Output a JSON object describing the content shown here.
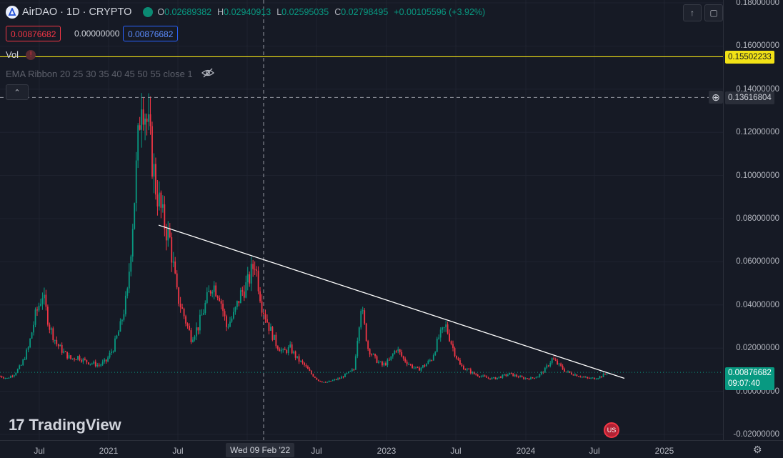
{
  "symbol": {
    "title": "AirDAO · 1D · CRYPTO",
    "logo_icon": "airdao-logo-icon",
    "status_icon": "market-open-dot-icon",
    "ohlc": {
      "o_label": "O",
      "o": "0.02689382",
      "h_label": "H",
      "h": "0.02940913",
      "l_label": "L",
      "l": "0.02595035",
      "c_label": "C",
      "c": "0.02798495",
      "change": "+0.00105596 (+3.92%)"
    }
  },
  "order": {
    "sell": "0.00876682",
    "spread": "0.00000000",
    "buy": "0.00876682"
  },
  "indicators": {
    "vol_label": "Vol",
    "vol_warning": "!",
    "ema_label": "EMA Ribbon 20 25 30 35 40 45 50 55 close 1"
  },
  "price_axis": {
    "ticks": [
      "0.18000000",
      "0.16000000",
      "0.14000000",
      "0.12000000",
      "0.10000000",
      "0.08000000",
      "0.06000000",
      "0.04000000",
      "0.02000000",
      "0.00000000",
      "-0.02000000"
    ],
    "yellow_line_label": "0.15502233",
    "crosshair_label": "0.13616804",
    "last_price": "0.00876682",
    "countdown": "09:07:40"
  },
  "time_axis": {
    "ticks": [
      "Jul",
      "2021",
      "Jul",
      "Jul",
      "2023",
      "Jul",
      "2024",
      "Jul",
      "2025"
    ],
    "crosshair_date": "Wed 09 Feb '22"
  },
  "branding": {
    "name": "TradingView"
  },
  "colors": {
    "up": "#089981",
    "down": "#f23645",
    "yellow_line": "#f2e216",
    "trendline": "#ffffff",
    "background": "#161a25"
  },
  "chart_data": {
    "type": "line",
    "series": [
      {
        "values": [
          0.007,
          0.006,
          0.008,
          0.012,
          0.02,
          0.035,
          0.045,
          0.03,
          0.022,
          0.018,
          0.015,
          0.016,
          0.014,
          0.013,
          0.012,
          0.014,
          0.02,
          0.03,
          0.045,
          0.09,
          0.14,
          0.12,
          0.095,
          0.08,
          0.07,
          0.045,
          0.035,
          0.025,
          0.03,
          0.04,
          0.05,
          0.045,
          0.03,
          0.035,
          0.045,
          0.05,
          0.06,
          0.04,
          0.03,
          0.022,
          0.018,
          0.02,
          0.015,
          0.012,
          0.008,
          0.005,
          0.004,
          0.005,
          0.006,
          0.008,
          0.01,
          0.04,
          0.02,
          0.015,
          0.012,
          0.014,
          0.02,
          0.015,
          0.012,
          0.01,
          0.012,
          0.015,
          0.025,
          0.03,
          0.02,
          0.012,
          0.01,
          0.008,
          0.007,
          0.006,
          0.006,
          0.007,
          0.008,
          0.007,
          0.006,
          0.006,
          0.007,
          0.01,
          0.015,
          0.012,
          0.009,
          0.008,
          0.007,
          0.006,
          0.006,
          0.007,
          0.009
        ]
      }
    ]
  }
}
